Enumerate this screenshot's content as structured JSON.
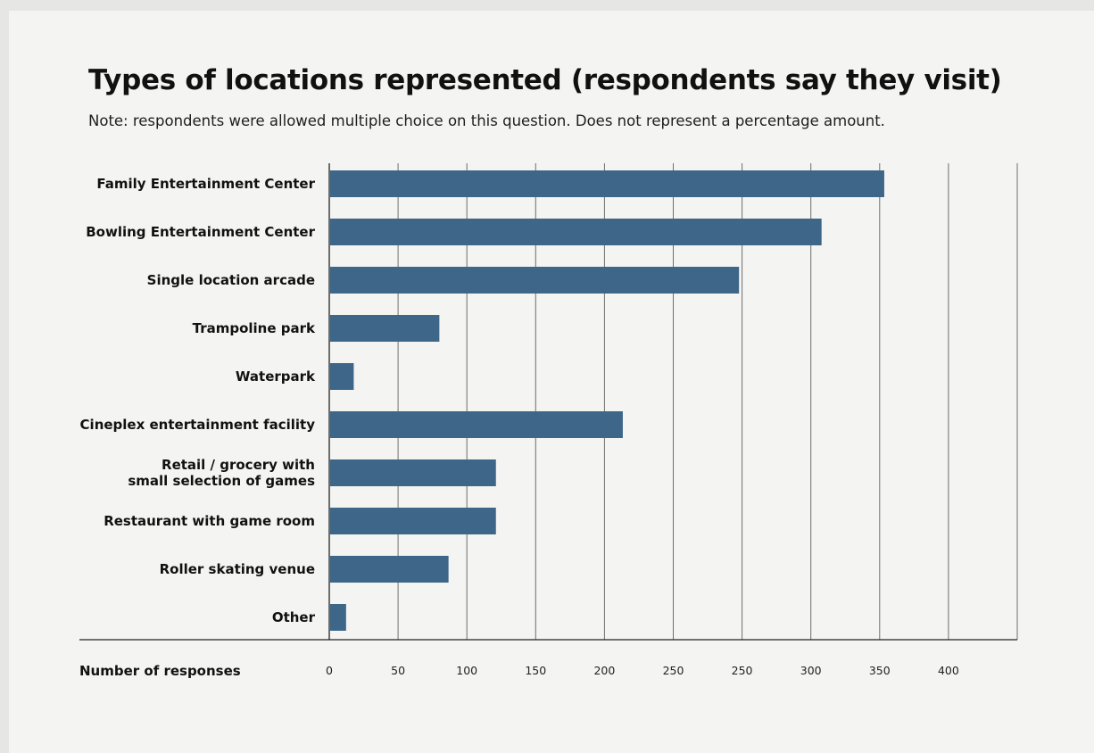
{
  "chart_data": {
    "type": "bar",
    "orientation": "horizontal",
    "title": "Types of locations represented (respondents say they visit)",
    "subtitle": "Note: respondents were allowed multiple choice on this question.  Does not represent a percentage amount.",
    "xlabel": "Number of responses",
    "ylabel": "",
    "categories": [
      [
        "Family Entertainment Center"
      ],
      [
        "Bowling Entertainment Center"
      ],
      [
        "Single location arcade"
      ],
      [
        "Trampoline park"
      ],
      [
        "Waterpark"
      ],
      [
        "Cineplex entertainment facility"
      ],
      [
        "Retail / grocery with",
        "small selection of games"
      ],
      [
        "Restaurant with game room"
      ],
      [
        "Roller skating venue"
      ],
      [
        "Other"
      ]
    ],
    "values": [
      363,
      322,
      268,
      72,
      16,
      192,
      109,
      109,
      78,
      11
    ],
    "xlim": [
      0,
      450
    ],
    "xticks": [
      "0",
      "50",
      "100",
      "150",
      "200",
      "250",
      "250",
      "300",
      "350",
      "400"
    ],
    "grid": true,
    "colors": {
      "bar": "#3e6688",
      "grid": "#6e6e6e",
      "axis": "#222222"
    }
  }
}
